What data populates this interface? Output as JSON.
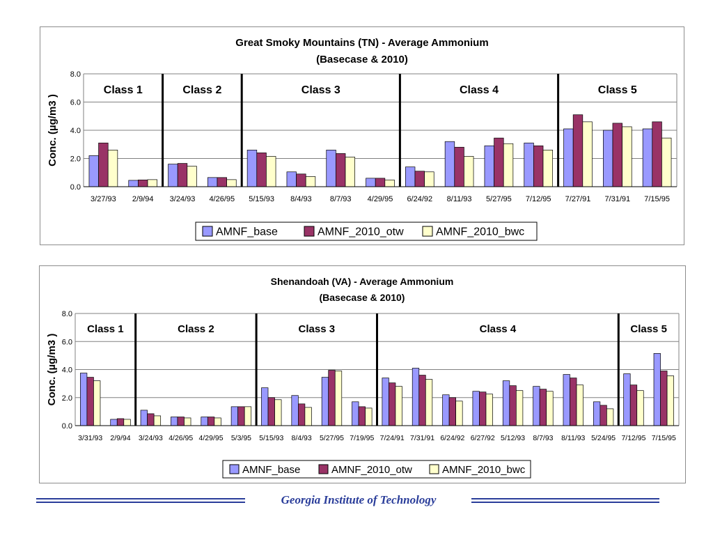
{
  "chart_data": [
    {
      "type": "bar",
      "title": "Great Smoky Mountains (TN) - Average Ammonium",
      "subtitle": "(Basecase & 2010)",
      "ylabel": "Conc.  (µg/m3 )",
      "ylim": [
        0,
        8
      ],
      "yticks": [
        "0.0",
        "2.0",
        "4.0",
        "6.0",
        "8.0"
      ],
      "grid": true,
      "legend": "bottom",
      "categories": [
        "3/27/93",
        "2/9/94",
        "3/24/93",
        "4/26/95",
        "5/15/93",
        "8/4/93",
        "8/7/93",
        "4/29/95",
        "6/24/92",
        "8/11/93",
        "5/27/95",
        "7/12/95",
        "7/27/91",
        "7/31/91",
        "7/15/95"
      ],
      "series": [
        {
          "name": "AMNF_base",
          "color": "#9999ff",
          "values": [
            2.2,
            0.45,
            1.6,
            0.65,
            2.6,
            1.05,
            2.6,
            0.6,
            1.4,
            3.2,
            2.9,
            3.1,
            4.1,
            4.0,
            4.1
          ]
        },
        {
          "name": "AMNF_2010_otw",
          "color": "#993366",
          "values": [
            3.1,
            0.48,
            1.65,
            0.65,
            2.4,
            0.9,
            2.35,
            0.6,
            1.1,
            2.8,
            3.45,
            2.9,
            5.1,
            4.5,
            4.6
          ]
        },
        {
          "name": "AMNF_2010_bwc",
          "color": "#ffffcc",
          "values": [
            2.6,
            0.5,
            1.45,
            0.5,
            2.15,
            0.72,
            2.1,
            0.48,
            1.05,
            2.15,
            3.05,
            2.6,
            4.6,
            4.25,
            3.45
          ]
        }
      ],
      "classes": [
        {
          "label": "Class 1",
          "start": 0,
          "end": 1
        },
        {
          "label": "Class 2",
          "start": 2,
          "end": 3
        },
        {
          "label": "Class 3",
          "start": 4,
          "end": 7
        },
        {
          "label": "Class 4",
          "start": 8,
          "end": 11
        },
        {
          "label": "Class 5",
          "start": 12,
          "end": 14
        }
      ]
    },
    {
      "type": "bar",
      "title": "Shenandoah (VA) - Average Ammonium",
      "subtitle": "(Basecase & 2010)",
      "ylabel": "Conc.  (µg/m3 )",
      "ylim": [
        0,
        8
      ],
      "yticks": [
        "0.0",
        "2.0",
        "4.0",
        "6.0",
        "8.0"
      ],
      "grid": true,
      "legend": "bottom",
      "categories": [
        "3/31/93",
        "2/9/94",
        "3/24/93",
        "4/26/95",
        "4/29/95",
        "5/3/95",
        "5/15/93",
        "8/4/93",
        "5/27/95",
        "7/19/95",
        "7/24/91",
        "7/31/91",
        "6/24/92",
        "6/27/92",
        "5/12/93",
        "8/7/93",
        "8/11/93",
        "5/24/95",
        "7/12/95",
        "7/15/95"
      ],
      "series": [
        {
          "name": "AMNF_base",
          "color": "#9999ff",
          "values": [
            3.75,
            0.45,
            1.1,
            0.62,
            0.62,
            1.35,
            2.7,
            2.15,
            3.45,
            1.7,
            3.4,
            4.1,
            2.2,
            2.45,
            3.2,
            2.8,
            3.65,
            1.7,
            3.7,
            5.15
          ]
        },
        {
          "name": "AMNF_2010_otw",
          "color": "#993366",
          "values": [
            3.45,
            0.5,
            0.85,
            0.62,
            0.62,
            1.35,
            2.0,
            1.55,
            3.95,
            1.35,
            3.05,
            3.6,
            2.0,
            2.4,
            2.85,
            2.6,
            3.4,
            1.45,
            2.9,
            3.9
          ]
        },
        {
          "name": "AMNF_2010_bwc",
          "color": "#ffffcc",
          "values": [
            3.2,
            0.45,
            0.7,
            0.55,
            0.55,
            1.35,
            1.85,
            1.3,
            3.9,
            1.25,
            2.8,
            3.3,
            1.75,
            2.25,
            2.5,
            2.45,
            2.9,
            1.2,
            2.5,
            3.55
          ]
        }
      ],
      "classes": [
        {
          "label": "Class 1",
          "start": 0,
          "end": 1
        },
        {
          "label": "Class 2",
          "start": 2,
          "end": 5
        },
        {
          "label": "Class 3",
          "start": 6,
          "end": 9
        },
        {
          "label": "Class 4",
          "start": 10,
          "end": 17
        },
        {
          "label": "Class 5",
          "start": 18,
          "end": 19
        }
      ]
    }
  ],
  "footer": {
    "title": "Georgia Institute of Technology",
    "accent": "#2a3d9a"
  }
}
